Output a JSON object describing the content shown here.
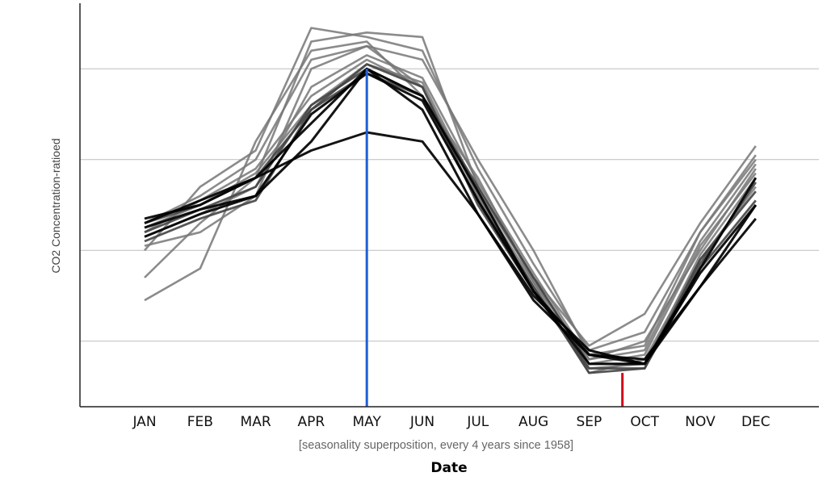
{
  "chart_data": {
    "type": "line",
    "ylabel": "CO2 Concentration-ratioed",
    "xlabel": "Date",
    "subtitle": "[seasonality superposition, every 4 years since 1958]",
    "categories": [
      "JAN",
      "FEB",
      "MAR",
      "APR",
      "MAY",
      "JUN",
      "JUL",
      "AUG",
      "SEP",
      "OCT",
      "NOV",
      "DEC"
    ],
    "ylim": [
      -2.3,
      2.2
    ],
    "gridlines_y": [
      -1.5,
      -0.5,
      0.5,
      1.5
    ],
    "grid": "horizontal",
    "series_colors": {
      "gray": "#777777",
      "dark": "#444444",
      "black": "#000000"
    },
    "series": [
      {
        "style": "gray",
        "values": [
          -0.5,
          0.2,
          0.6,
          1.95,
          1.85,
          1.7,
          0.4,
          -0.65,
          -1.6,
          -1.4,
          -0.3,
          0.5
        ]
      },
      {
        "style": "gray",
        "values": [
          -0.8,
          -0.2,
          0.3,
          1.8,
          1.9,
          1.85,
          0.2,
          -0.8,
          -1.55,
          -1.2,
          -0.2,
          0.65
        ]
      },
      {
        "style": "gray",
        "values": [
          -1.05,
          -0.7,
          0.7,
          1.7,
          1.8,
          1.2,
          0.3,
          -0.85,
          -1.7,
          -1.5,
          -0.5,
          0.4
        ]
      },
      {
        "style": "gray",
        "values": [
          -0.2,
          0.1,
          0.5,
          1.6,
          1.75,
          1.6,
          0.5,
          -0.5,
          -1.65,
          -1.55,
          -0.3,
          0.55
        ]
      },
      {
        "style": "gray",
        "values": [
          -0.45,
          -0.3,
          0.1,
          1.5,
          1.75,
          1.3,
          0.1,
          -0.9,
          -1.8,
          -1.75,
          -0.55,
          0.3
        ]
      },
      {
        "style": "gray",
        "values": [
          -0.35,
          -0.1,
          0.2,
          1.3,
          1.65,
          1.4,
          0.25,
          -0.75,
          -1.7,
          -1.6,
          -0.4,
          0.45
        ]
      },
      {
        "style": "gray",
        "values": [
          -0.25,
          0.0,
          0.35,
          1.1,
          1.55,
          1.35,
          0.15,
          -0.8,
          -1.75,
          -1.65,
          -0.45,
          0.35
        ]
      },
      {
        "style": "gray",
        "values": [
          -0.3,
          0.05,
          0.4,
          1.2,
          1.6,
          1.3,
          0.1,
          -0.85,
          -1.85,
          -1.7,
          -0.6,
          0.2
        ]
      },
      {
        "style": "dark",
        "values": [
          -0.3,
          -0.05,
          0.2,
          1.1,
          1.5,
          1.2,
          0.2,
          -0.8,
          -1.75,
          -1.75,
          -0.65,
          0.25
        ]
      },
      {
        "style": "dark",
        "values": [
          -0.2,
          0.0,
          0.3,
          1.05,
          1.55,
          1.3,
          0.0,
          -0.95,
          -1.8,
          -1.8,
          -0.6,
          0.15
        ]
      },
      {
        "style": "dark",
        "values": [
          -0.4,
          -0.15,
          0.05,
          1.05,
          1.45,
          1.2,
          0.05,
          -0.9,
          -1.85,
          -1.8,
          -0.7,
          0.05
        ]
      },
      {
        "style": "black",
        "values": [
          -0.15,
          0.0,
          0.3,
          0.6,
          0.8,
          0.7,
          -0.1,
          -1.0,
          -1.6,
          -1.75,
          -0.9,
          -0.15
        ]
      },
      {
        "style": "black",
        "values": [
          -0.2,
          0.05,
          0.3,
          0.9,
          1.5,
          1.2,
          0.15,
          -0.95,
          -1.65,
          -1.75,
          -0.75,
          -0.0
        ]
      },
      {
        "style": "black",
        "values": [
          -0.35,
          -0.1,
          0.1,
          1.0,
          1.45,
          1.15,
          0.05,
          -0.95,
          -1.75,
          -1.75,
          -0.7,
          0.3
        ]
      },
      {
        "style": "black",
        "values": [
          -0.25,
          -0.05,
          0.1,
          0.7,
          1.5,
          1.05,
          -0.1,
          -1.05,
          -1.65,
          -1.7,
          -0.9,
          -0.0
        ]
      }
    ],
    "markers": [
      {
        "name": "may-peak-line",
        "x": 4.0,
        "color": "#1f5fd6",
        "y_top": 1.5
      },
      {
        "name": "sep-oct-trough-line",
        "x": 8.6,
        "color": "#d0021b",
        "y_top": -1.85
      }
    ]
  }
}
